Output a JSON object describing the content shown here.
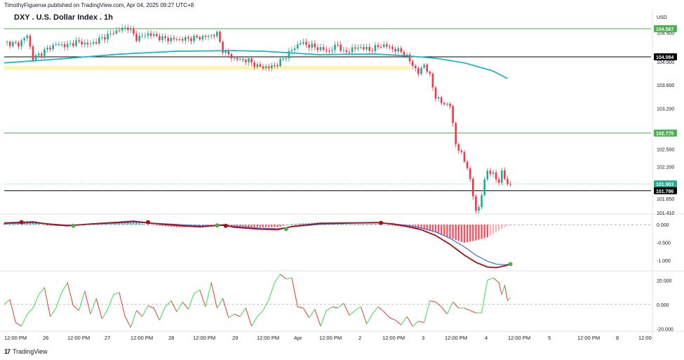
{
  "header": {
    "publisher_line": "TimothyFigueroa published on TradingView.com, Apr 04, 2025 09:27 UTC+8",
    "symbol_title": "DXY . U.S. Dollar Index . 1h",
    "currency": "USD"
  },
  "footer": {
    "logo_text": "TradingView",
    "logo_icon": "tradingview-logo-icon"
  },
  "colors": {
    "up": "#22ab94",
    "down": "#f23645",
    "ma": "#1fb5c8",
    "support_zone": "#fff3b8",
    "green_level": "#4caf50",
    "black_level": "#000000",
    "macd_dark": "#a11218",
    "macd_signal": "#3d6fd8",
    "dot_green": "#4caf50",
    "dot_red": "#a11218",
    "osc_green": "#39e04a",
    "osc_red": "#e53935"
  },
  "chart_data": [
    {
      "type": "candlestick",
      "name": "price_panel",
      "ylim": [
        101.41,
        104.65
      ],
      "yticks": [
        "104.500",
        "104.000",
        "103.600",
        "103.200",
        "102.500",
        "102.200",
        "101.650",
        "101.410"
      ],
      "price_labels": [
        {
          "label": "104.567",
          "value": 104.567,
          "color": "#4caf50"
        },
        {
          "label": "104.084",
          "value": 104.084,
          "color": "#000000"
        },
        {
          "label": "102.775",
          "value": 102.775,
          "color": "#4caf50"
        },
        {
          "label": "101.903",
          "value": 101.903,
          "color": "#22ab94"
        },
        {
          "label": "101.786",
          "value": 101.786,
          "color": "#000000"
        }
      ],
      "horizontal_lines": [
        {
          "value": 104.567,
          "color": "#4caf50"
        },
        {
          "value": 104.084,
          "color": "#000000"
        },
        {
          "value": 102.775,
          "color": "#4caf50"
        },
        {
          "value": 101.786,
          "color": "#000000"
        }
      ],
      "support_zone": {
        "from": 103.86,
        "to": 103.93
      },
      "ma_anchors": [
        [
          0,
          103.98
        ],
        [
          20,
          104.05
        ],
        [
          40,
          104.13
        ],
        [
          60,
          104.18
        ],
        [
          80,
          104.19
        ],
        [
          90,
          104.18
        ],
        [
          100,
          104.15
        ],
        [
          110,
          104.12
        ],
        [
          120,
          104.13
        ],
        [
          130,
          104.13
        ],
        [
          140,
          104.1
        ],
        [
          150,
          104.06
        ],
        [
          160,
          103.98
        ],
        [
          170,
          103.84
        ],
        [
          175,
          103.71
        ]
      ],
      "candle_anchors": [
        [
          0,
          104.33
        ],
        [
          5,
          104.3
        ],
        [
          8,
          104.45
        ],
        [
          10,
          104.05
        ],
        [
          15,
          104.22
        ],
        [
          18,
          104.3
        ],
        [
          22,
          104.28
        ],
        [
          25,
          104.34
        ],
        [
          30,
          104.3
        ],
        [
          35,
          104.43
        ],
        [
          40,
          104.55
        ],
        [
          43,
          104.59
        ],
        [
          46,
          104.4
        ],
        [
          50,
          104.48
        ],
        [
          55,
          104.4
        ],
        [
          60,
          104.38
        ],
        [
          65,
          104.4
        ],
        [
          70,
          104.43
        ],
        [
          74,
          104.48
        ],
        [
          76,
          104.2
        ],
        [
          80,
          104.05
        ],
        [
          85,
          104.02
        ],
        [
          88,
          103.92
        ],
        [
          92,
          103.9
        ],
        [
          95,
          103.96
        ],
        [
          98,
          104.1
        ],
        [
          100,
          104.2
        ],
        [
          103,
          104.33
        ],
        [
          106,
          104.28
        ],
        [
          110,
          104.22
        ],
        [
          113,
          104.18
        ],
        [
          116,
          104.3
        ],
        [
          118,
          104.15
        ],
        [
          121,
          104.22
        ],
        [
          124,
          104.25
        ],
        [
          127,
          104.2
        ],
        [
          131,
          104.28
        ],
        [
          133,
          104.27
        ],
        [
          136,
          104.2
        ],
        [
          138,
          104.18
        ],
        [
          140,
          104.08
        ],
        [
          142,
          103.95
        ],
        [
          144,
          103.8
        ],
        [
          146,
          103.96
        ],
        [
          148,
          103.75
        ],
        [
          150,
          103.4
        ],
        [
          152,
          103.3
        ],
        [
          155,
          103.25
        ],
        [
          157,
          102.6
        ],
        [
          159,
          102.4
        ],
        [
          161,
          102.2
        ],
        [
          163,
          101.7
        ],
        [
          164,
          101.45
        ],
        [
          165,
          101.5
        ],
        [
          166,
          101.72
        ],
        [
          167,
          101.95
        ],
        [
          168,
          102.15
        ],
        [
          170,
          102.05
        ],
        [
          172,
          101.95
        ],
        [
          173,
          102.1
        ],
        [
          175,
          101.9
        ]
      ]
    },
    {
      "type": "macd",
      "name": "macd_panel",
      "ylim": [
        -1.25,
        0.22
      ],
      "yticks": [
        "0.000",
        "-0.500",
        "-1.000"
      ],
      "macd_anchors": [
        [
          0,
          0.05
        ],
        [
          10,
          0.08
        ],
        [
          15,
          0.02
        ],
        [
          22,
          -0.03
        ],
        [
          30,
          0.02
        ],
        [
          40,
          0.07
        ],
        [
          45,
          0.1
        ],
        [
          50,
          0.05
        ],
        [
          60,
          -0.02
        ],
        [
          68,
          -0.06
        ],
        [
          76,
          -0.01
        ],
        [
          80,
          -0.07
        ],
        [
          88,
          -0.12
        ],
        [
          95,
          -0.14
        ],
        [
          100,
          -0.05
        ],
        [
          110,
          0.04
        ],
        [
          120,
          0.05
        ],
        [
          130,
          0.06
        ],
        [
          135,
          0.02
        ],
        [
          140,
          -0.05
        ],
        [
          145,
          -0.14
        ],
        [
          150,
          -0.3
        ],
        [
          155,
          -0.55
        ],
        [
          160,
          -0.85
        ],
        [
          164,
          -1.05
        ],
        [
          168,
          -1.18
        ],
        [
          171,
          -1.2
        ],
        [
          174,
          -1.15
        ],
        [
          176,
          -1.1
        ]
      ],
      "signal_anchors": [
        [
          0,
          0.03
        ],
        [
          10,
          0.05
        ],
        [
          15,
          0.03
        ],
        [
          22,
          -0.01
        ],
        [
          30,
          0.01
        ],
        [
          40,
          0.05
        ],
        [
          45,
          0.07
        ],
        [
          50,
          0.05
        ],
        [
          60,
          0.01
        ],
        [
          68,
          -0.03
        ],
        [
          76,
          -0.02
        ],
        [
          80,
          -0.04
        ],
        [
          88,
          -0.09
        ],
        [
          95,
          -0.11
        ],
        [
          100,
          -0.06
        ],
        [
          110,
          0.01
        ],
        [
          120,
          0.04
        ],
        [
          130,
          0.05
        ],
        [
          135,
          0.03
        ],
        [
          140,
          -0.02
        ],
        [
          145,
          -0.09
        ],
        [
          150,
          -0.2
        ],
        [
          155,
          -0.38
        ],
        [
          160,
          -0.62
        ],
        [
          164,
          -0.85
        ],
        [
          168,
          -1.02
        ],
        [
          171,
          -1.1
        ],
        [
          174,
          -1.12
        ],
        [
          176,
          -1.1
        ]
      ],
      "dots": [
        [
          6,
          0.07,
          "red"
        ],
        [
          24,
          -0.03,
          "green"
        ],
        [
          50,
          0.07,
          "red"
        ],
        [
          74,
          -0.02,
          "green"
        ],
        [
          77,
          -0.03,
          "red"
        ],
        [
          98,
          -0.12,
          "green"
        ],
        [
          131,
          0.05,
          "red"
        ],
        [
          176,
          -1.1,
          "green"
        ]
      ]
    },
    {
      "type": "oscillator",
      "name": "oscillator_panel",
      "ylim": [
        -21,
        26
      ],
      "yticks": [
        "20.000",
        "0.000",
        "-20.000"
      ],
      "anchors": [
        [
          0,
          0
        ],
        [
          2,
          4
        ],
        [
          4,
          -15
        ],
        [
          6,
          -18
        ],
        [
          8,
          -8
        ],
        [
          10,
          -3
        ],
        [
          12,
          8
        ],
        [
          14,
          14
        ],
        [
          16,
          -10
        ],
        [
          18,
          -3
        ],
        [
          20,
          10
        ],
        [
          22,
          18
        ],
        [
          24,
          -1
        ],
        [
          26,
          -5
        ],
        [
          28,
          11
        ],
        [
          30,
          -8
        ],
        [
          32,
          5
        ],
        [
          34,
          -12
        ],
        [
          36,
          -4
        ],
        [
          38,
          8
        ],
        [
          40,
          10
        ],
        [
          42,
          -10
        ],
        [
          44,
          -19
        ],
        [
          46,
          -5
        ],
        [
          48,
          -10
        ],
        [
          50,
          -1
        ],
        [
          52,
          -3
        ],
        [
          54,
          -13
        ],
        [
          56,
          -2
        ],
        [
          58,
          3
        ],
        [
          60,
          -6
        ],
        [
          62,
          2
        ],
        [
          64,
          -4
        ],
        [
          66,
          9
        ],
        [
          68,
          12
        ],
        [
          70,
          -2
        ],
        [
          72,
          18
        ],
        [
          74,
          -3
        ],
        [
          76,
          5
        ],
        [
          78,
          -11
        ],
        [
          80,
          -8
        ],
        [
          82,
          -10
        ],
        [
          84,
          -3
        ],
        [
          86,
          -18
        ],
        [
          88,
          -10
        ],
        [
          90,
          -5
        ],
        [
          92,
          4
        ],
        [
          94,
          18
        ],
        [
          96,
          25
        ],
        [
          98,
          21
        ],
        [
          100,
          22
        ],
        [
          102,
          -2
        ],
        [
          104,
          -3
        ],
        [
          106,
          -11
        ],
        [
          108,
          -4
        ],
        [
          110,
          -18
        ],
        [
          112,
          -5
        ],
        [
          114,
          -2
        ],
        [
          116,
          -3
        ],
        [
          118,
          1
        ],
        [
          120,
          -9
        ],
        [
          122,
          -5
        ],
        [
          124,
          -2
        ],
        [
          126,
          -16
        ],
        [
          128,
          -8
        ],
        [
          130,
          -2
        ],
        [
          132,
          -6
        ],
        [
          134,
          -11
        ],
        [
          136,
          -13
        ],
        [
          138,
          -17
        ],
        [
          140,
          -10
        ],
        [
          142,
          -18
        ],
        [
          144,
          -14
        ],
        [
          146,
          -15
        ],
        [
          148,
          3
        ],
        [
          150,
          2
        ],
        [
          152,
          -2
        ],
        [
          154,
          -8
        ],
        [
          156,
          2
        ],
        [
          158,
          -3
        ],
        [
          160,
          -3
        ],
        [
          162,
          -5
        ],
        [
          164,
          -7
        ],
        [
          166,
          -7
        ],
        [
          168,
          20
        ],
        [
          170,
          22
        ],
        [
          172,
          18
        ],
        [
          173,
          8
        ],
        [
          174,
          16
        ],
        [
          175,
          3
        ],
        [
          176,
          6
        ]
      ]
    }
  ],
  "x_axis": {
    "labels": [
      "12:00 PM",
      "26",
      "12:00 PM",
      "27",
      "12:00 PM",
      "28",
      "12:00 PM",
      "29",
      "12:00 PM",
      "Apr",
      "12:00 PM",
      "2",
      "12:00 PM",
      "3",
      "12:00 PM",
      "4",
      "12:00 PM",
      "5",
      "12:00 PM",
      "8",
      "12:00"
    ]
  }
}
